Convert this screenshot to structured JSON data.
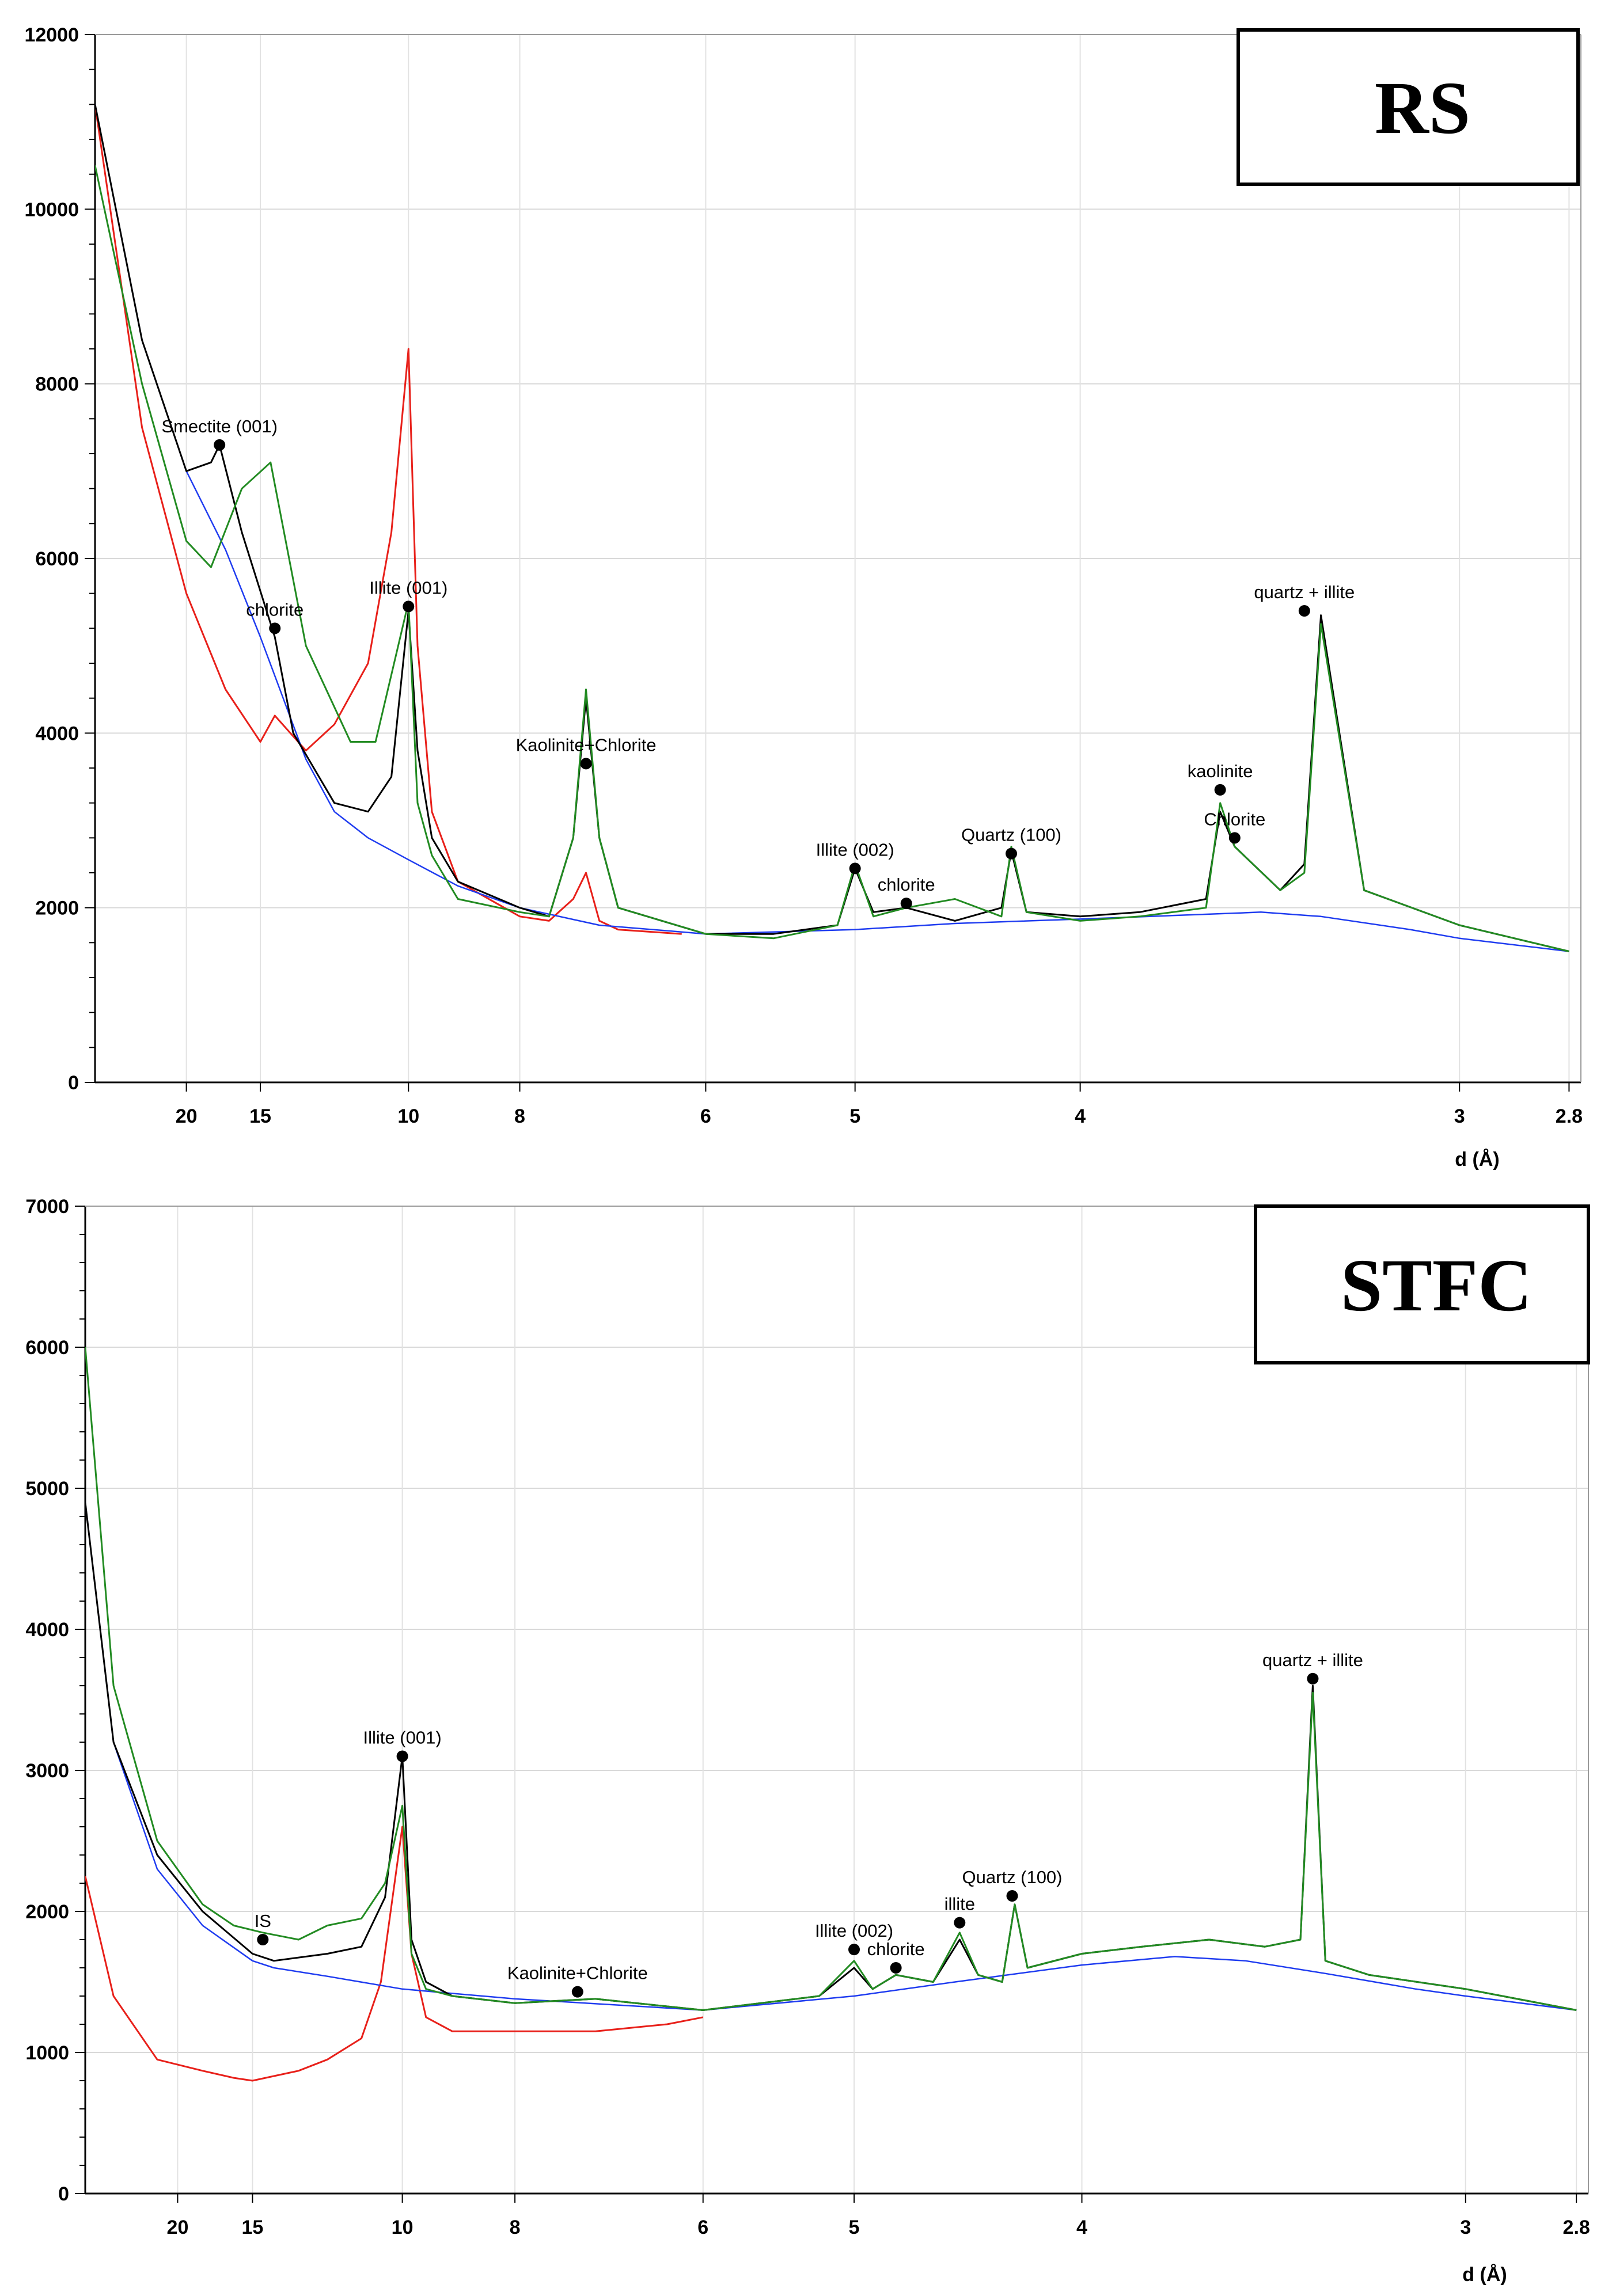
{
  "chart_data": [
    {
      "type": "line",
      "title": "RS",
      "xlabel": "d (Å)",
      "ylabel": "",
      "x_scale": "two-theta (labelled in d-spacing)",
      "ylim": [
        0,
        12000
      ],
      "y_ticks": [
        0,
        2000,
        4000,
        6000,
        8000,
        10000,
        12000
      ],
      "x_ticks": [
        "20",
        "15",
        "10",
        "8",
        "6",
        "5",
        "4",
        "3",
        "2.8"
      ],
      "x_tick_d": [
        20,
        15,
        10,
        8,
        6,
        5,
        4,
        3,
        2.8
      ],
      "series": [
        {
          "name": "black trace",
          "color": "#000000",
          "x_d": [
            34,
            25,
            20,
            18,
            17.4,
            16,
            14.3,
            13.5,
            12,
            11,
            10.4,
            10.0,
            9.8,
            9.5,
            9,
            8,
            7.6,
            7.3,
            7.15,
            7.0,
            6.8,
            6,
            5.5,
            5.1,
            5.0,
            4.9,
            4.73,
            4.5,
            4.3,
            4.26,
            4.2,
            4.0,
            3.8,
            3.6,
            3.56,
            3.52,
            3.4,
            3.34,
            3.3,
            3.2,
            3.0,
            2.8
          ],
          "y": [
            11200,
            8500,
            7000,
            7100,
            7300,
            6300,
            5100,
            4000,
            3200,
            3100,
            3500,
            5400,
            3800,
            2800,
            2300,
            2000,
            1900,
            2800,
            4400,
            2800,
            2000,
            1700,
            1700,
            1800,
            2450,
            1950,
            2000,
            1850,
            2000,
            2650,
            1950,
            1900,
            1950,
            2100,
            3100,
            2700,
            2200,
            2500,
            5350,
            2200,
            1800,
            1500
          ]
        },
        {
          "name": "green trace",
          "color": "#228b22",
          "x_d": [
            34,
            25,
            20,
            18,
            16,
            14.5,
            13,
            11.5,
            10.8,
            10.0,
            9.8,
            9.5,
            9,
            8,
            7.6,
            7.3,
            7.15,
            7.0,
            6.8,
            6,
            5.5,
            5.1,
            5.0,
            4.9,
            4.73,
            4.5,
            4.3,
            4.26,
            4.2,
            4.0,
            3.8,
            3.6,
            3.56,
            3.52,
            3.4,
            3.34,
            3.3,
            3.2,
            3.0,
            2.8
          ],
          "y": [
            10500,
            8000,
            6200,
            5900,
            6800,
            7100,
            5000,
            3900,
            3900,
            5500,
            3200,
            2600,
            2100,
            1950,
            1900,
            2800,
            4500,
            2800,
            2000,
            1700,
            1650,
            1800,
            2500,
            1900,
            2000,
            2100,
            1900,
            2700,
            1950,
            1850,
            1900,
            2000,
            3200,
            2700,
            2200,
            2400,
            5250,
            2200,
            1800,
            1500
          ]
        },
        {
          "name": "red trace",
          "color": "#e8201a",
          "x_d": [
            34,
            25,
            20,
            17,
            15,
            14.3,
            13,
            12,
            11,
            10.4,
            10.0,
            9.8,
            9.5,
            9,
            8,
            7.6,
            7.3,
            7.15,
            7.0,
            6.8,
            6.2
          ],
          "y": [
            11200,
            7500,
            5600,
            4500,
            3900,
            4200,
            3800,
            4100,
            4800,
            6300,
            8400,
            5000,
            3100,
            2300,
            1900,
            1850,
            2100,
            2400,
            1850,
            1750,
            1700
          ]
        },
        {
          "name": "blue baseline",
          "color": "#1f3cf0",
          "x_d": [
            34,
            25,
            20,
            17,
            15,
            13,
            12,
            11,
            10,
            9,
            8,
            7,
            6,
            5,
            4.5,
            4,
            3.7,
            3.45,
            3.3,
            3.1,
            3.0,
            2.8
          ],
          "y": [
            11200,
            8500,
            7000,
            6100,
            5100,
            3700,
            3100,
            2800,
            2550,
            2250,
            2000,
            1800,
            1700,
            1750,
            1820,
            1870,
            1910,
            1950,
            1900,
            1750,
            1650,
            1500
          ]
        }
      ],
      "annotations": [
        {
          "label": "Smectite (001)",
          "d": 17.4,
          "y": 7300
        },
        {
          "label": "chlorite",
          "d": 14.3,
          "y": 5200
        },
        {
          "label": "Illite (001)",
          "d": 10.0,
          "y": 5450
        },
        {
          "label": "Kaolinite+Chlorite",
          "d": 7.15,
          "y": 3650
        },
        {
          "label": "Illite (002)",
          "d": 5.0,
          "y": 2450
        },
        {
          "label": "chlorite",
          "d": 4.73,
          "y": 2050
        },
        {
          "label": "Quartz (100)",
          "d": 4.26,
          "y": 2620
        },
        {
          "label": "kaolinite",
          "d": 3.56,
          "y": 3350
        },
        {
          "label": "Chlorite",
          "d": 3.52,
          "y": 2800
        },
        {
          "label": "quartz + illite",
          "d": 3.34,
          "y": 5400
        }
      ]
    },
    {
      "type": "line",
      "title": "STFC",
      "xlabel": "d (Å)",
      "ylabel": "",
      "x_scale": "two-theta (labelled in d-spacing)",
      "ylim": [
        0,
        7000
      ],
      "y_ticks": [
        0,
        1000,
        2000,
        3000,
        4000,
        5000,
        6000,
        7000
      ],
      "x_ticks": [
        "20",
        "15",
        "10",
        "8",
        "6",
        "5",
        "4",
        "3",
        "2.8"
      ],
      "x_tick_d": [
        20,
        15,
        10,
        8,
        6,
        5,
        4,
        3,
        2.8
      ],
      "series": [
        {
          "name": "black trace",
          "color": "#000000",
          "x_d": [
            34,
            28,
            22,
            18,
            15,
            14,
            12,
            11,
            10.4,
            10.0,
            9.8,
            9.5,
            9,
            8,
            7,
            6,
            5.2,
            5.0,
            4.9,
            4.78,
            4.6,
            4.48,
            4.4,
            4.3,
            4.25,
            4.2,
            4.0,
            3.8,
            3.6,
            3.45,
            3.36,
            3.33,
            3.3,
            3.2,
            3.0,
            2.8
          ],
          "y": [
            4900,
            3200,
            2400,
            2000,
            1700,
            1650,
            1700,
            1750,
            2100,
            3100,
            1800,
            1500,
            1400,
            1350,
            1380,
            1300,
            1400,
            1600,
            1450,
            1550,
            1500,
            1800,
            1550,
            1500,
            2050,
            1600,
            1700,
            1750,
            1800,
            1750,
            1800,
            3600,
            1650,
            1550,
            1450,
            1300
          ]
        },
        {
          "name": "green trace",
          "color": "#228b22",
          "x_d": [
            34,
            28,
            22,
            18,
            16,
            14.5,
            13,
            12,
            11,
            10.4,
            10.0,
            9.8,
            9.5,
            9,
            8,
            7,
            6,
            5.2,
            5.0,
            4.9,
            4.78,
            4.6,
            4.48,
            4.4,
            4.3,
            4.25,
            4.2,
            4.0,
            3.8,
            3.6,
            3.45,
            3.36,
            3.33,
            3.3,
            3.2,
            3.0,
            2.8
          ],
          "y": [
            6000,
            3600,
            2500,
            2050,
            1900,
            1850,
            1800,
            1900,
            1950,
            2200,
            2750,
            1700,
            1450,
            1400,
            1350,
            1380,
            1300,
            1400,
            1650,
            1450,
            1550,
            1500,
            1850,
            1550,
            1500,
            2050,
            1600,
            1700,
            1750,
            1800,
            1750,
            1800,
            3550,
            1650,
            1550,
            1450,
            1300
          ]
        },
        {
          "name": "red trace",
          "color": "#e8201a",
          "x_d": [
            34,
            28,
            22,
            18,
            16,
            15,
            13,
            12,
            11,
            10.5,
            10.0,
            9.8,
            9.5,
            9,
            8,
            7,
            6.3,
            6.0
          ],
          "y": [
            2250,
            1400,
            950,
            870,
            820,
            800,
            870,
            950,
            1100,
            1500,
            2600,
            1700,
            1250,
            1150,
            1150,
            1150,
            1200,
            1250
          ]
        },
        {
          "name": "blue baseline",
          "color": "#1f3cf0",
          "x_d": [
            34,
            28,
            22,
            18,
            15,
            14,
            12,
            10,
            8,
            6,
            5,
            4.5,
            4,
            3.7,
            3.5,
            3.3,
            3.1,
            3.0,
            2.8
          ],
          "y": [
            4900,
            3200,
            2300,
            1900,
            1650,
            1600,
            1540,
            1450,
            1380,
            1300,
            1400,
            1500,
            1620,
            1680,
            1650,
            1560,
            1450,
            1400,
            1300
          ]
        }
      ],
      "annotations": [
        {
          "label": "IS",
          "d": 14.5,
          "y": 1800
        },
        {
          "label": "Illite (001)",
          "d": 10.0,
          "y": 3100
        },
        {
          "label": "Kaolinite+Chlorite",
          "d": 7.2,
          "y": 1430
        },
        {
          "label": "Illite (002)",
          "d": 5.0,
          "y": 1730
        },
        {
          "label": "chlorite",
          "d": 4.78,
          "y": 1600
        },
        {
          "label": "illite",
          "d": 4.48,
          "y": 1920
        },
        {
          "label": "Quartz (100)",
          "d": 4.26,
          "y": 2110
        },
        {
          "label": "quartz + illite",
          "d": 3.33,
          "y": 3650
        }
      ]
    }
  ]
}
